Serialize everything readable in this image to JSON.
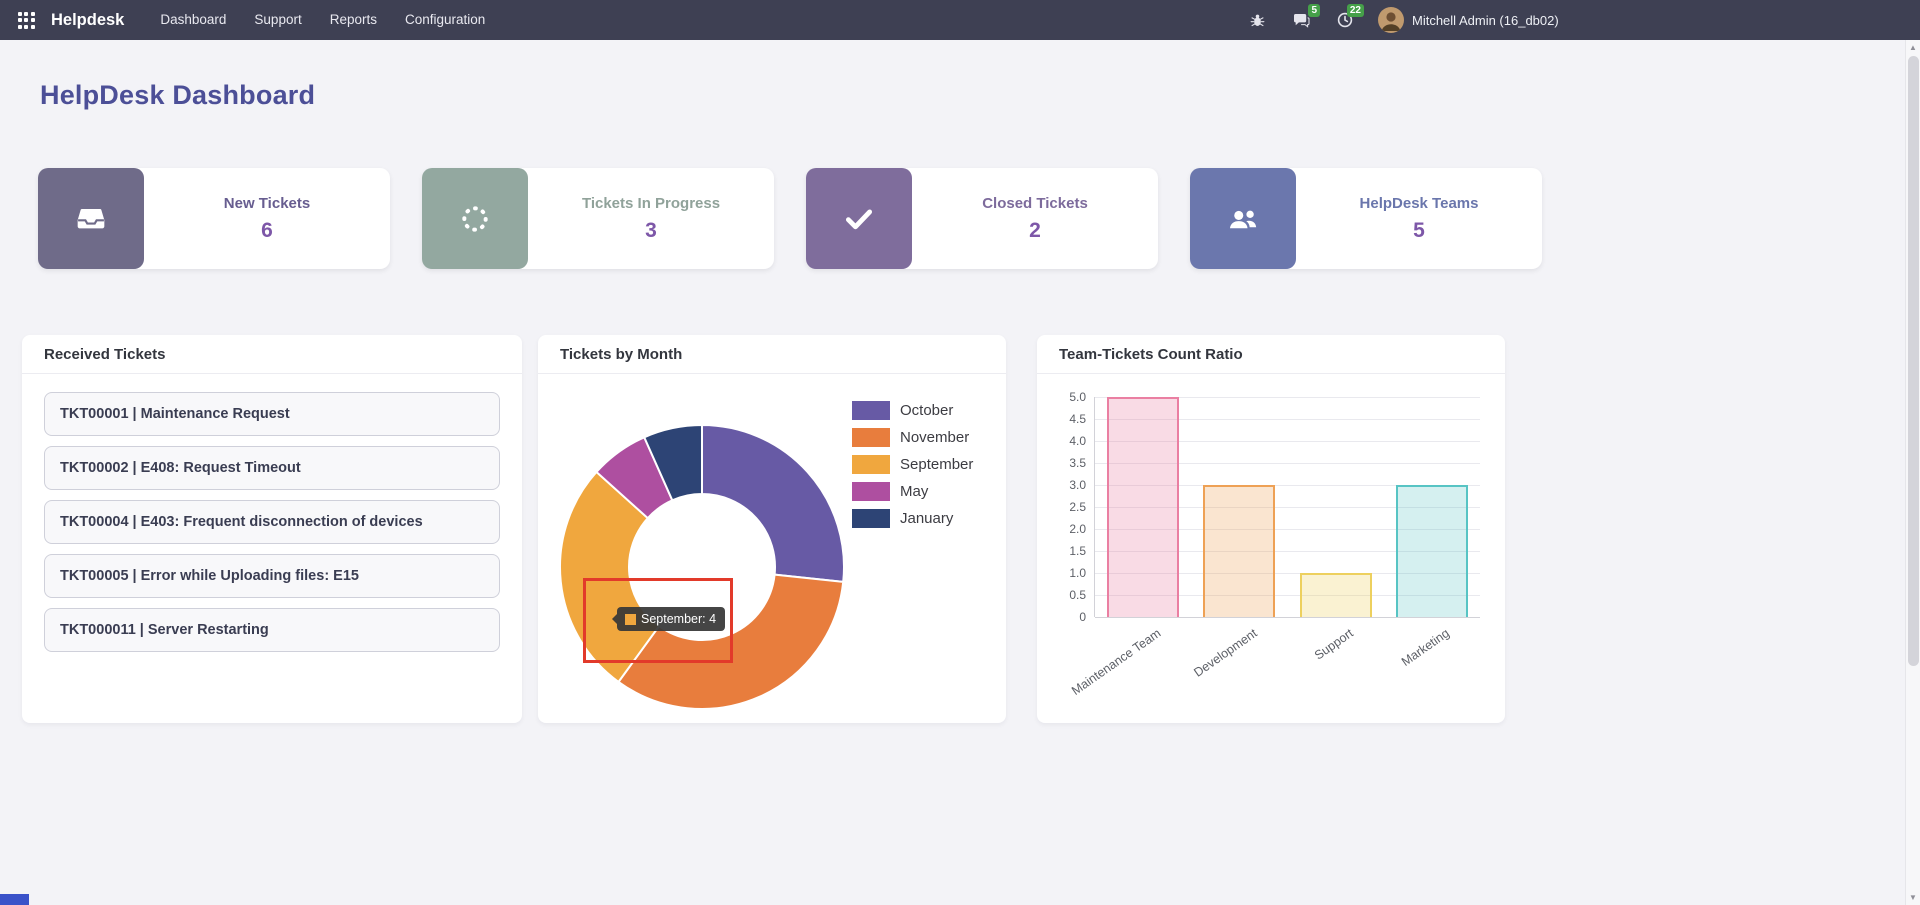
{
  "navbar": {
    "brand": "Helpdesk",
    "menu": [
      "Dashboard",
      "Support",
      "Reports",
      "Configuration"
    ],
    "messages_badge": "5",
    "activities_badge": "22",
    "user_name": "Mitchell Admin (16_db02)",
    "badge_color": "#45a049",
    "background_color": "#3e4053"
  },
  "page_title": "HelpDesk Dashboard",
  "kpis": [
    {
      "label": "New Tickets",
      "value": "6",
      "tile_color": "#6f6b89",
      "label_color": "#675d90",
      "value_color": "#7d57a8",
      "icon": "inbox-icon"
    },
    {
      "label": "Tickets In Progress",
      "value": "3",
      "tile_color": "#93a8a0",
      "label_color": "#90a29a",
      "value_color": "#7d57a8",
      "icon": "spinner-icon"
    },
    {
      "label": "Closed Tickets",
      "value": "2",
      "tile_color": "#7f6d9c",
      "label_color": "#7d6b9c",
      "value_color": "#7d57a8",
      "icon": "check-icon"
    },
    {
      "label": "HelpDesk Teams",
      "value": "5",
      "tile_color": "#6b77ad",
      "label_color": "#6a76ac",
      "value_color": "#7d57a8",
      "icon": "users-icon"
    }
  ],
  "received_panel": {
    "title": "Received Tickets",
    "tickets": [
      "TKT00001 | Maintenance Request",
      "TKT00002 | E408: Request Timeout",
      "TKT00004 | E403: Frequent disconnection of devices",
      "TKT00005 | Error while Uploading files: E15",
      "TKT000011 | Server Restarting"
    ]
  },
  "month_panel": {
    "title": "Tickets by Month"
  },
  "ratio_panel": {
    "title": "Team-Tickets Count Ratio"
  },
  "tooltip": {
    "label": "September: 4",
    "swatch_color": "#f0a73e",
    "highlight_color": "#e23a2a"
  },
  "chart_data": [
    {
      "type": "pie",
      "variant": "donut",
      "title": "Tickets by Month",
      "labels": [
        "October",
        "November",
        "September",
        "May",
        "January"
      ],
      "values": [
        4,
        5,
        4,
        1,
        1
      ],
      "colors": [
        "#675aa5",
        "#e87d3d",
        "#f0a73e",
        "#ae4fa0",
        "#2d4475"
      ],
      "legend_position": "right",
      "active_tooltip": "September: 4"
    },
    {
      "type": "bar",
      "title": "Team-Tickets Count Ratio",
      "categories": [
        "Maintenance Team",
        "Development",
        "Support",
        "Marketing"
      ],
      "values": [
        5,
        3,
        1,
        3
      ],
      "border_colors": [
        "#ea7fa2",
        "#eea155",
        "#edd05e",
        "#57c4c4"
      ],
      "fill_colors": [
        "rgba(234,127,162,0.28)",
        "rgba(238,161,85,0.28)",
        "rgba(237,208,94,0.28)",
        "rgba(87,196,196,0.25)"
      ],
      "ylim": [
        0,
        5
      ],
      "ytick_step": 0.5,
      "grid": true,
      "xlabel_rotation": -35
    }
  ]
}
